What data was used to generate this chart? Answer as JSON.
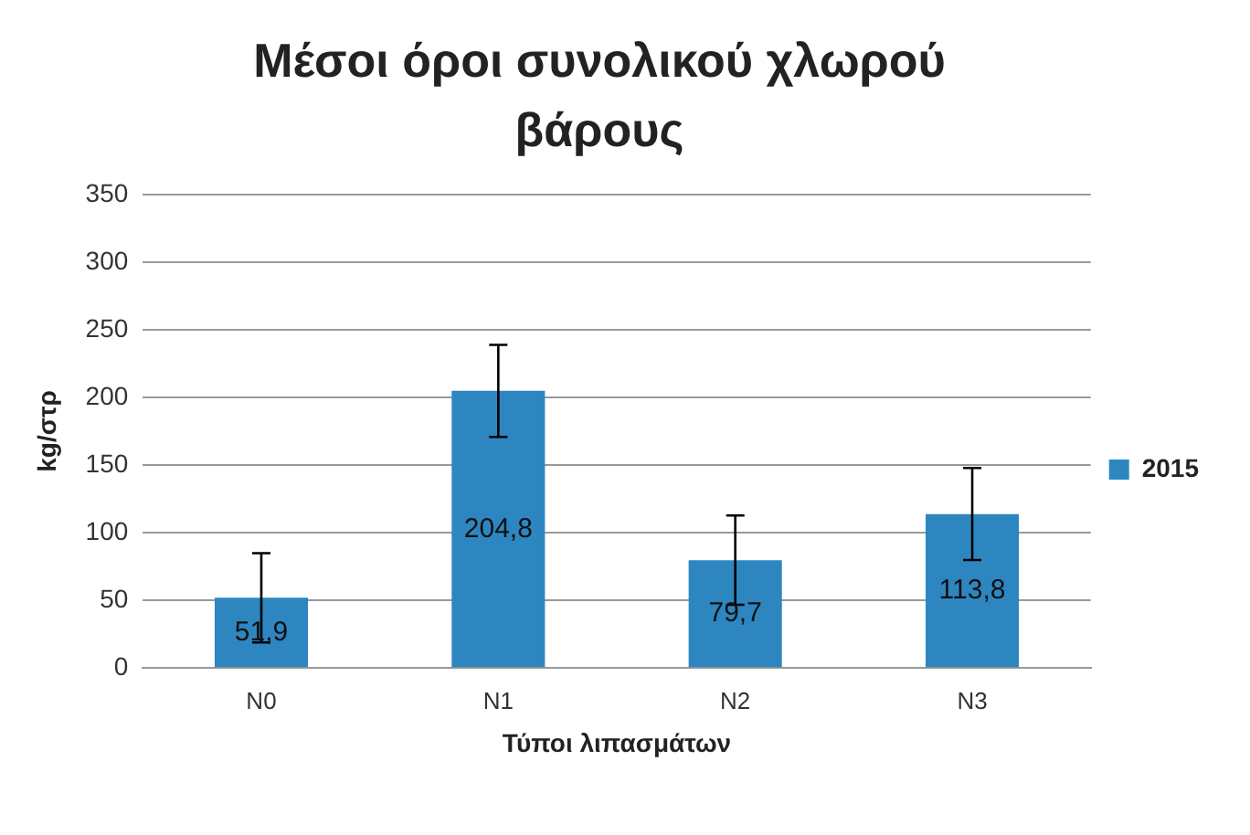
{
  "chart_data": {
    "type": "bar",
    "title": "Μέσοι όροι συνολικού χλωρού βάρους",
    "xlabel": "Τύποι λιπασμάτων",
    "ylabel": "kg/στρ",
    "categories": [
      "N0",
      "N1",
      "N2",
      "N3"
    ],
    "series": [
      {
        "name": "2015",
        "color": "#2e86c1",
        "values": [
          51.9,
          204.8,
          79.7,
          113.8
        ],
        "errors": [
          33,
          34,
          33,
          34
        ],
        "value_labels": [
          "51,9",
          "204,8",
          "79,7",
          "113,8"
        ]
      }
    ],
    "ylim": [
      0,
      350
    ],
    "yticks": [
      0,
      50,
      100,
      150,
      200,
      250,
      300,
      350
    ],
    "grid": "y",
    "legend": "right"
  }
}
